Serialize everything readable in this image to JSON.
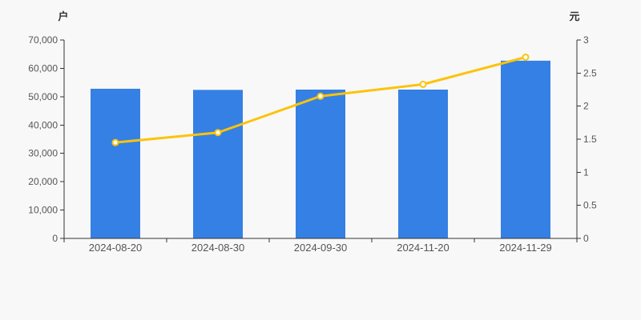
{
  "chart_data": {
    "type": "bar+line",
    "title": "",
    "categories": [
      "2024-08-20",
      "2024-08-30",
      "2024-09-30",
      "2024-11-20",
      "2024-11-29"
    ],
    "series": [
      {
        "name": "bar-series",
        "type": "bar",
        "axis": "left",
        "values": [
          52800,
          52400,
          52500,
          52500,
          62700
        ],
        "color": "#3580e4"
      },
      {
        "name": "line-series",
        "type": "line",
        "axis": "right",
        "values": [
          1.45,
          1.6,
          2.15,
          2.33,
          2.74
        ],
        "color": "#fcc30b",
        "marker_fill": "#ffffff"
      }
    ],
    "left_axis": {
      "name": "户",
      "min": 0,
      "max": 70000,
      "tick_interval": 10000,
      "tick_labels": [
        "0",
        "10,000",
        "20,000",
        "30,000",
        "40,000",
        "50,000",
        "60,000",
        "70,000"
      ]
    },
    "right_axis": {
      "name": "元",
      "min": 0,
      "max": 3,
      "tick_interval": 0.5,
      "tick_labels": [
        "0",
        "0.5",
        "1",
        "1.5",
        "2",
        "2.5",
        "3"
      ]
    },
    "grid": false,
    "legend": null,
    "background": "#f8f8f8",
    "axis_color": "#333333",
    "tick_text_color": "#555555"
  }
}
